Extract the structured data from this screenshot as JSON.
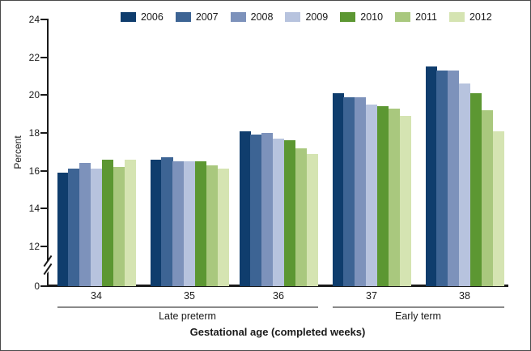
{
  "chart_data": {
    "type": "bar",
    "title": "",
    "ylabel": "Percent",
    "xlabel": "Gestational age (completed weeks)",
    "ylim": [
      0,
      24
    ],
    "y_axis_break_between": [
      0,
      12
    ],
    "yticks": [
      24,
      22,
      20,
      18,
      16,
      14,
      12,
      0
    ],
    "grid": false,
    "legend_position": "top",
    "categories": [
      "34",
      "35",
      "36",
      "37",
      "38"
    ],
    "category_groups": [
      {
        "label": "Late preterm",
        "from": 0,
        "to": 2
      },
      {
        "label": "Early term",
        "from": 3,
        "to": 4
      }
    ],
    "series": [
      {
        "name": "2006",
        "color": "#0f3d6d",
        "values": [
          15.9,
          16.6,
          18.1,
          20.1,
          21.5
        ]
      },
      {
        "name": "2007",
        "color": "#3d6494",
        "values": [
          16.1,
          16.7,
          17.9,
          19.9,
          21.3
        ]
      },
      {
        "name": "2008",
        "color": "#7d92bb",
        "values": [
          16.4,
          16.5,
          18.0,
          19.9,
          21.3
        ]
      },
      {
        "name": "2009",
        "color": "#b7c3de",
        "values": [
          16.1,
          16.5,
          17.7,
          19.5,
          20.6
        ]
      },
      {
        "name": "2010",
        "color": "#5c9732",
        "values": [
          16.6,
          16.5,
          17.6,
          19.4,
          20.1
        ]
      },
      {
        "name": "2011",
        "color": "#a9c87e",
        "values": [
          16.2,
          16.3,
          17.2,
          19.3,
          19.2
        ]
      },
      {
        "name": "2012",
        "color": "#d5e4b2",
        "values": [
          16.6,
          16.1,
          16.9,
          18.9,
          18.1
        ]
      }
    ]
  }
}
